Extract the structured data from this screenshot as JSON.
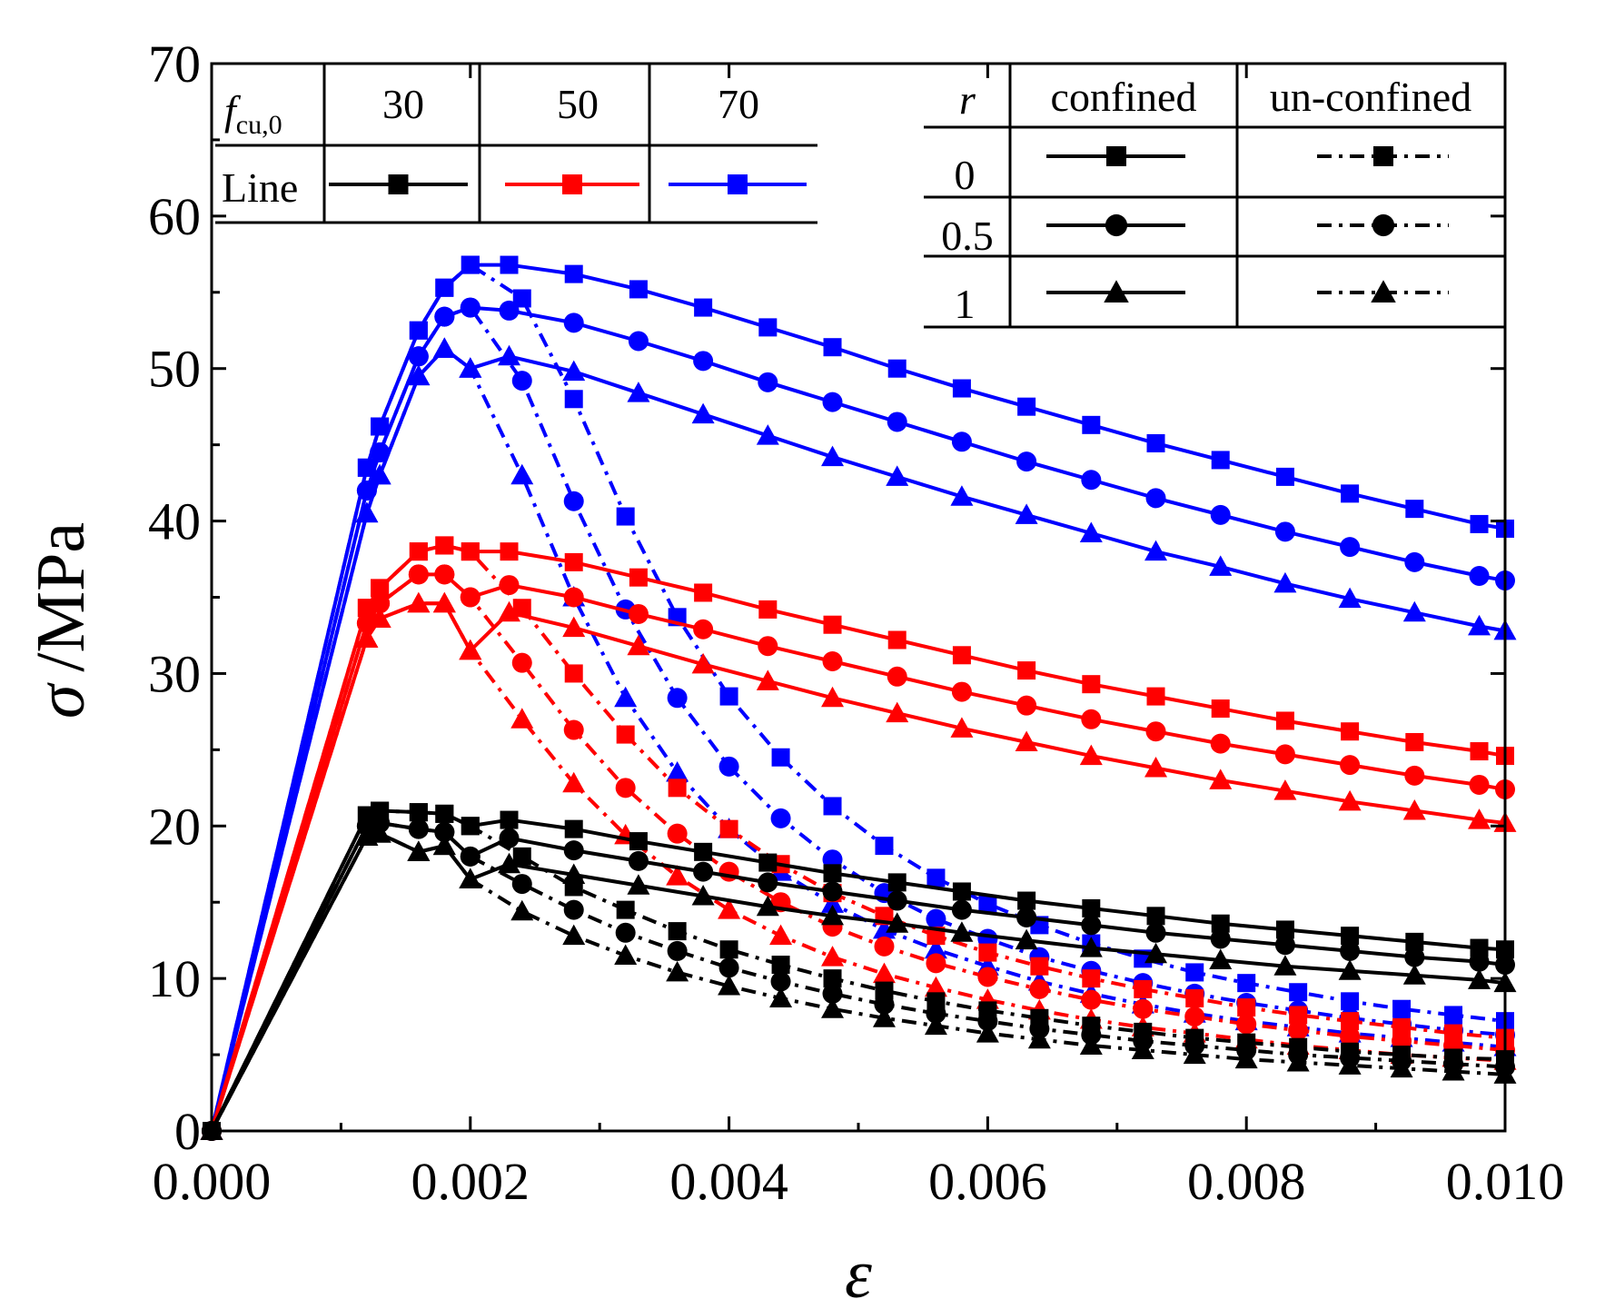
{
  "chart_data": {
    "type": "line",
    "title": "",
    "xlabel": "ε",
    "ylabel_symbol": "σ",
    "ylabel_unit": "/MPa",
    "xlim": [
      0,
      0.01
    ],
    "ylim": [
      0,
      70
    ],
    "x_ticks": [
      {
        "value": 0.0,
        "label": "0.000"
      },
      {
        "value": 0.002,
        "label": "0.002"
      },
      {
        "value": 0.004,
        "label": "0.004"
      },
      {
        "value": 0.006,
        "label": "0.006"
      },
      {
        "value": 0.008,
        "label": "0.008"
      },
      {
        "value": 0.01,
        "label": "0.010"
      }
    ],
    "y_ticks": [
      {
        "value": 0,
        "label": "0"
      },
      {
        "value": 10,
        "label": "10"
      },
      {
        "value": 20,
        "label": "20"
      },
      {
        "value": 30,
        "label": "30"
      },
      {
        "value": 40,
        "label": "40"
      },
      {
        "value": 50,
        "label": "50"
      },
      {
        "value": 60,
        "label": "60"
      },
      {
        "value": 70,
        "label": "70"
      }
    ],
    "legend_strength": {
      "header_label": "f",
      "header_subscript": "cu,0",
      "line_label": "Line",
      "entries": [
        {
          "value": "30",
          "color": "#000000"
        },
        {
          "value": "50",
          "color": "#ff0000"
        },
        {
          "value": "70",
          "color": "#0000ff"
        }
      ]
    },
    "legend_ratio": {
      "r_label": "r",
      "confined_label": "confined",
      "unconfined_label": "un-confined",
      "rows": [
        {
          "r": "0",
          "marker": "square"
        },
        {
          "r": "0.5",
          "marker": "circle"
        },
        {
          "r": "1",
          "marker": "triangle"
        }
      ]
    },
    "series": [
      {
        "name": "fcu0=70 r=0 confined",
        "color": "#0000ff",
        "marker": "square",
        "style": "solid",
        "x": [
          0.0012,
          0.0013,
          0.0016,
          0.0018,
          0.002,
          0.0023,
          0.0028,
          0.0033,
          0.0038,
          0.0043,
          0.0048,
          0.0053,
          0.0058,
          0.0063,
          0.0068,
          0.0073,
          0.0078,
          0.0083,
          0.0088,
          0.0093,
          0.0098,
          0.01
        ],
        "y": [
          43.5,
          46.2,
          52.5,
          55.3,
          56.8,
          56.8,
          56.2,
          55.2,
          54.0,
          52.7,
          51.4,
          50.0,
          48.7,
          47.5,
          46.3,
          45.1,
          44.0,
          42.9,
          41.8,
          40.8,
          39.8,
          39.5
        ]
      },
      {
        "name": "fcu0=70 r=0.5 confined",
        "color": "#0000ff",
        "marker": "circle",
        "style": "solid",
        "x": [
          0.0012,
          0.0013,
          0.0016,
          0.0018,
          0.002,
          0.0023,
          0.0028,
          0.0033,
          0.0038,
          0.0043,
          0.0048,
          0.0053,
          0.0058,
          0.0063,
          0.0068,
          0.0073,
          0.0078,
          0.0083,
          0.0088,
          0.0093,
          0.0098,
          0.01
        ],
        "y": [
          42.0,
          44.5,
          50.8,
          53.4,
          54.0,
          53.8,
          53.0,
          51.8,
          50.5,
          49.1,
          47.8,
          46.5,
          45.2,
          43.9,
          42.7,
          41.5,
          40.4,
          39.3,
          38.3,
          37.3,
          36.4,
          36.1
        ]
      },
      {
        "name": "fcu0=70 r=1 confined",
        "color": "#0000ff",
        "marker": "triangle",
        "style": "solid",
        "x": [
          0.0012,
          0.0013,
          0.0016,
          0.0018,
          0.002,
          0.0023,
          0.0028,
          0.0033,
          0.0038,
          0.0043,
          0.0048,
          0.0053,
          0.0058,
          0.0063,
          0.0068,
          0.0073,
          0.0078,
          0.0083,
          0.0088,
          0.0093,
          0.0098,
          0.01
        ],
        "y": [
          40.5,
          43.0,
          49.5,
          51.3,
          50.0,
          50.8,
          49.8,
          48.4,
          47.0,
          45.6,
          44.2,
          42.9,
          41.6,
          40.4,
          39.2,
          38.0,
          37.0,
          35.9,
          34.9,
          34.0,
          33.1,
          32.8
        ]
      },
      {
        "name": "fcu0=70 r=0 un-confined",
        "color": "#0000ff",
        "marker": "square",
        "style": "dashdot",
        "x": [
          0.0012,
          0.0013,
          0.0016,
          0.0018,
          0.002,
          0.0024,
          0.0028,
          0.0032,
          0.0036,
          0.004,
          0.0044,
          0.0048,
          0.0052,
          0.0056,
          0.006,
          0.0064,
          0.0068,
          0.0072,
          0.0076,
          0.008,
          0.0084,
          0.0088,
          0.0092,
          0.0096,
          0.01
        ],
        "y": [
          43.5,
          46.2,
          52.5,
          55.3,
          56.8,
          54.6,
          48.0,
          40.3,
          33.7,
          28.5,
          24.5,
          21.3,
          18.7,
          16.6,
          14.9,
          13.5,
          12.3,
          11.3,
          10.4,
          9.7,
          9.1,
          8.5,
          8.0,
          7.6,
          7.2
        ]
      },
      {
        "name": "fcu0=70 r=0.5 un-confined",
        "color": "#0000ff",
        "marker": "circle",
        "style": "dashdot",
        "x": [
          0.0012,
          0.0013,
          0.0016,
          0.0018,
          0.002,
          0.0024,
          0.0028,
          0.0032,
          0.0036,
          0.004,
          0.0044,
          0.0048,
          0.0052,
          0.0056,
          0.006,
          0.0064,
          0.0068,
          0.0072,
          0.0076,
          0.008,
          0.0084,
          0.0088,
          0.0092,
          0.0096,
          0.01
        ],
        "y": [
          42.0,
          44.5,
          50.8,
          53.4,
          54.0,
          49.2,
          41.3,
          34.2,
          28.4,
          23.9,
          20.5,
          17.8,
          15.6,
          13.9,
          12.6,
          11.4,
          10.5,
          9.7,
          9.0,
          8.4,
          7.9,
          7.4,
          7.0,
          6.6,
          6.3
        ]
      },
      {
        "name": "fcu0=70 r=1 un-confined",
        "color": "#0000ff",
        "marker": "triangle",
        "style": "dashdot",
        "x": [
          0.0012,
          0.0013,
          0.0016,
          0.0018,
          0.002,
          0.0024,
          0.0028,
          0.0032,
          0.0036,
          0.004,
          0.0044,
          0.0048,
          0.0052,
          0.0056,
          0.006,
          0.0064,
          0.0068,
          0.0072,
          0.0076,
          0.008,
          0.0084,
          0.0088,
          0.0092,
          0.0096,
          0.01
        ],
        "y": [
          40.5,
          43.0,
          49.5,
          51.3,
          50.0,
          43.0,
          35.0,
          28.4,
          23.5,
          19.8,
          17.0,
          14.9,
          13.2,
          11.9,
          10.8,
          9.8,
          9.0,
          8.3,
          7.7,
          7.2,
          6.8,
          6.4,
          6.1,
          5.8,
          5.5
        ]
      },
      {
        "name": "fcu0=50 r=0 confined",
        "color": "#ff0000",
        "marker": "square",
        "style": "solid",
        "x": [
          0.0012,
          0.0013,
          0.0016,
          0.0018,
          0.002,
          0.0023,
          0.0028,
          0.0033,
          0.0038,
          0.0043,
          0.0048,
          0.0053,
          0.0058,
          0.0063,
          0.0068,
          0.0073,
          0.0078,
          0.0083,
          0.0088,
          0.0093,
          0.0098,
          0.01
        ],
        "y": [
          34.3,
          35.6,
          38.0,
          38.4,
          38.0,
          38.0,
          37.3,
          36.3,
          35.3,
          34.2,
          33.2,
          32.2,
          31.2,
          30.2,
          29.3,
          28.5,
          27.7,
          26.9,
          26.2,
          25.5,
          24.9,
          24.6
        ]
      },
      {
        "name": "fcu0=50 r=0.5 confined",
        "color": "#ff0000",
        "marker": "circle",
        "style": "solid",
        "x": [
          0.0012,
          0.0013,
          0.0016,
          0.0018,
          0.002,
          0.0023,
          0.0028,
          0.0033,
          0.0038,
          0.0043,
          0.0048,
          0.0053,
          0.0058,
          0.0063,
          0.0068,
          0.0073,
          0.0078,
          0.0083,
          0.0088,
          0.0093,
          0.0098,
          0.01
        ],
        "y": [
          33.3,
          34.6,
          36.5,
          36.5,
          35.0,
          35.8,
          35.0,
          33.9,
          32.9,
          31.8,
          30.8,
          29.8,
          28.8,
          27.9,
          27.0,
          26.2,
          25.4,
          24.7,
          24.0,
          23.3,
          22.7,
          22.4
        ]
      },
      {
        "name": "fcu0=50 r=1 confined",
        "color": "#ff0000",
        "marker": "triangle",
        "style": "solid",
        "x": [
          0.0012,
          0.0013,
          0.0016,
          0.0018,
          0.002,
          0.0023,
          0.0028,
          0.0033,
          0.0038,
          0.0043,
          0.0048,
          0.0053,
          0.0058,
          0.0063,
          0.0068,
          0.0073,
          0.0078,
          0.0083,
          0.0088,
          0.0093,
          0.0098,
          0.01
        ],
        "y": [
          32.3,
          33.6,
          34.6,
          34.6,
          31.5,
          34.0,
          33.0,
          31.8,
          30.6,
          29.5,
          28.4,
          27.4,
          26.4,
          25.5,
          24.6,
          23.8,
          23.0,
          22.3,
          21.6,
          21.0,
          20.4,
          20.2
        ]
      },
      {
        "name": "fcu0=50 r=0 un-confined",
        "color": "#ff0000",
        "marker": "square",
        "style": "dashdot",
        "x": [
          0.0012,
          0.0013,
          0.0016,
          0.0018,
          0.002,
          0.0024,
          0.0028,
          0.0032,
          0.0036,
          0.004,
          0.0044,
          0.0048,
          0.0052,
          0.0056,
          0.006,
          0.0064,
          0.0068,
          0.0072,
          0.0076,
          0.008,
          0.0084,
          0.0088,
          0.0092,
          0.0096,
          0.01
        ],
        "y": [
          34.3,
          35.6,
          38.0,
          38.4,
          38.0,
          34.3,
          30.0,
          26.0,
          22.5,
          19.8,
          17.5,
          15.6,
          14.1,
          12.8,
          11.7,
          10.8,
          10.0,
          9.3,
          8.7,
          8.1,
          7.6,
          7.2,
          6.8,
          6.4,
          6.1
        ]
      },
      {
        "name": "fcu0=50 r=0.5 un-confined",
        "color": "#ff0000",
        "marker": "circle",
        "style": "dashdot",
        "x": [
          0.0012,
          0.0013,
          0.0016,
          0.0018,
          0.002,
          0.0024,
          0.0028,
          0.0032,
          0.0036,
          0.004,
          0.0044,
          0.0048,
          0.0052,
          0.0056,
          0.006,
          0.0064,
          0.0068,
          0.0072,
          0.0076,
          0.008,
          0.0084,
          0.0088,
          0.0092,
          0.0096,
          0.01
        ],
        "y": [
          33.3,
          34.6,
          36.5,
          36.5,
          35.0,
          30.7,
          26.3,
          22.5,
          19.5,
          17.0,
          15.0,
          13.4,
          12.1,
          11.0,
          10.1,
          9.3,
          8.6,
          8.0,
          7.5,
          7.0,
          6.6,
          6.2,
          5.9,
          5.6,
          5.3
        ]
      },
      {
        "name": "fcu0=50 r=1 un-confined",
        "color": "#ff0000",
        "marker": "triangle",
        "style": "dashdot",
        "x": [
          0.0012,
          0.0013,
          0.0016,
          0.0018,
          0.002,
          0.0024,
          0.0028,
          0.0032,
          0.0036,
          0.004,
          0.0044,
          0.0048,
          0.0052,
          0.0056,
          0.006,
          0.0064,
          0.0068,
          0.0072,
          0.0076,
          0.008,
          0.0084,
          0.0088,
          0.0092,
          0.0096,
          0.01
        ],
        "y": [
          32.3,
          33.6,
          34.6,
          34.6,
          31.5,
          27.0,
          22.8,
          19.4,
          16.7,
          14.5,
          12.8,
          11.4,
          10.3,
          9.4,
          8.6,
          7.9,
          7.3,
          6.8,
          6.4,
          6.0,
          5.6,
          5.3,
          5.0,
          4.8,
          4.6
        ]
      },
      {
        "name": "fcu0=30 r=0 confined",
        "color": "#000000",
        "marker": "square",
        "style": "solid",
        "x": [
          0.0012,
          0.0013,
          0.0016,
          0.0018,
          0.002,
          0.0023,
          0.0028,
          0.0033,
          0.0038,
          0.0043,
          0.0048,
          0.0053,
          0.0058,
          0.0063,
          0.0068,
          0.0073,
          0.0078,
          0.0083,
          0.0088,
          0.0093,
          0.0098,
          0.01
        ],
        "y": [
          20.7,
          21.0,
          20.9,
          20.8,
          20.0,
          20.4,
          19.8,
          19.0,
          18.3,
          17.6,
          16.9,
          16.3,
          15.7,
          15.1,
          14.6,
          14.1,
          13.6,
          13.2,
          12.8,
          12.4,
          12.0,
          11.9
        ]
      },
      {
        "name": "fcu0=30 r=0.5 confined",
        "color": "#000000",
        "marker": "circle",
        "style": "solid",
        "x": [
          0.0012,
          0.0013,
          0.0016,
          0.0018,
          0.002,
          0.0023,
          0.0028,
          0.0033,
          0.0038,
          0.0043,
          0.0048,
          0.0053,
          0.0058,
          0.0063,
          0.0068,
          0.0073,
          0.0078,
          0.0083,
          0.0088,
          0.0093,
          0.0098,
          0.01
        ],
        "y": [
          20.0,
          20.2,
          19.8,
          19.6,
          18.0,
          19.2,
          18.4,
          17.7,
          17.0,
          16.3,
          15.7,
          15.1,
          14.5,
          14.0,
          13.5,
          13.0,
          12.6,
          12.2,
          11.8,
          11.4,
          11.1,
          10.9
        ]
      },
      {
        "name": "fcu0=30 r=1 confined",
        "color": "#000000",
        "marker": "triangle",
        "style": "solid",
        "x": [
          0.0012,
          0.0013,
          0.0016,
          0.0018,
          0.002,
          0.0023,
          0.0028,
          0.0033,
          0.0038,
          0.0043,
          0.0048,
          0.0053,
          0.0058,
          0.0063,
          0.0068,
          0.0073,
          0.0078,
          0.0083,
          0.0088,
          0.0093,
          0.0098,
          0.01
        ],
        "y": [
          19.3,
          19.5,
          18.3,
          18.7,
          16.5,
          17.5,
          16.8,
          16.1,
          15.4,
          14.7,
          14.1,
          13.6,
          13.0,
          12.5,
          12.0,
          11.6,
          11.2,
          10.8,
          10.5,
          10.2,
          9.9,
          9.7
        ]
      },
      {
        "name": "fcu0=30 r=0 un-confined",
        "color": "#000000",
        "marker": "square",
        "style": "dashdot",
        "x": [
          0.0012,
          0.0013,
          0.0016,
          0.0018,
          0.002,
          0.0024,
          0.0028,
          0.0032,
          0.0036,
          0.004,
          0.0044,
          0.0048,
          0.0052,
          0.0056,
          0.006,
          0.0064,
          0.0068,
          0.0072,
          0.0076,
          0.008,
          0.0084,
          0.0088,
          0.0092,
          0.0096,
          0.01
        ],
        "y": [
          20.7,
          21.0,
          20.9,
          20.8,
          20.0,
          18.0,
          16.0,
          14.5,
          13.1,
          11.9,
          10.9,
          10.0,
          9.2,
          8.5,
          7.9,
          7.4,
          6.9,
          6.5,
          6.1,
          5.8,
          5.5,
          5.2,
          5.0,
          4.8,
          4.7
        ]
      },
      {
        "name": "fcu0=30 r=0.5 un-confined",
        "color": "#000000",
        "marker": "circle",
        "style": "dashdot",
        "x": [
          0.0012,
          0.0013,
          0.0016,
          0.0018,
          0.002,
          0.0024,
          0.0028,
          0.0032,
          0.0036,
          0.004,
          0.0044,
          0.0048,
          0.0052,
          0.0056,
          0.006,
          0.0064,
          0.0068,
          0.0072,
          0.0076,
          0.008,
          0.0084,
          0.0088,
          0.0092,
          0.0096,
          0.01
        ],
        "y": [
          20.0,
          20.2,
          19.8,
          19.6,
          18.0,
          16.2,
          14.5,
          13.0,
          11.8,
          10.7,
          9.8,
          9.0,
          8.3,
          7.7,
          7.2,
          6.7,
          6.3,
          5.9,
          5.6,
          5.3,
          5.0,
          4.8,
          4.6,
          4.4,
          4.2
        ]
      },
      {
        "name": "fcu0=30 r=1 un-confined",
        "color": "#000000",
        "marker": "triangle",
        "style": "dashdot",
        "x": [
          0.0012,
          0.0013,
          0.0016,
          0.0018,
          0.002,
          0.0024,
          0.0028,
          0.0032,
          0.0036,
          0.004,
          0.0044,
          0.0048,
          0.0052,
          0.0056,
          0.006,
          0.0064,
          0.0068,
          0.0072,
          0.0076,
          0.008,
          0.0084,
          0.0088,
          0.0092,
          0.0096,
          0.01
        ],
        "y": [
          19.3,
          19.5,
          18.3,
          18.7,
          16.5,
          14.4,
          12.8,
          11.5,
          10.4,
          9.5,
          8.7,
          8.0,
          7.4,
          6.9,
          6.4,
          6.0,
          5.6,
          5.3,
          5.0,
          4.7,
          4.5,
          4.3,
          4.1,
          3.9,
          3.7
        ]
      }
    ]
  }
}
